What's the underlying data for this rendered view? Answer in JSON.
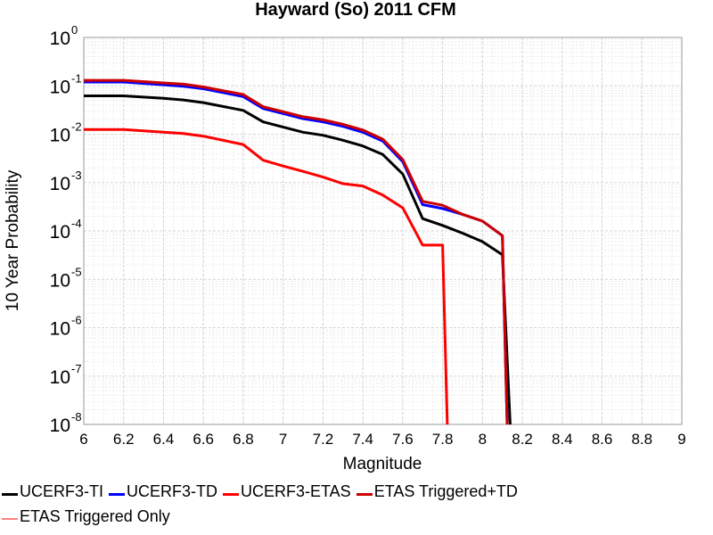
{
  "chart_data": {
    "type": "line",
    "title": "Hayward (So) 2011 CFM",
    "xlabel": "Magnitude",
    "ylabel": "10 Year Probability",
    "xlim": [
      6,
      9
    ],
    "ylim": [
      1e-08,
      1
    ],
    "y_scale": "log",
    "grid": true,
    "legend_placement": "bottom",
    "x_ticks": [
      "6",
      "6.2",
      "6.4",
      "6.6",
      "6.8",
      "7",
      "7.2",
      "7.4",
      "7.6",
      "7.8",
      "8",
      "8.2",
      "8.4",
      "8.6",
      "8.8",
      "9"
    ],
    "y_ticks": [
      {
        "base": "10",
        "exp": "0"
      },
      {
        "base": "10",
        "exp": "-1"
      },
      {
        "base": "10",
        "exp": "-2"
      },
      {
        "base": "10",
        "exp": "-3"
      },
      {
        "base": "10",
        "exp": "-4"
      },
      {
        "base": "10",
        "exp": "-5"
      },
      {
        "base": "10",
        "exp": "-6"
      },
      {
        "base": "10",
        "exp": "-7"
      },
      {
        "base": "10",
        "exp": "-8"
      }
    ],
    "series": [
      {
        "name": "UCERF3-TI",
        "color": "#000000",
        "width": 3,
        "x": [
          6.0,
          6.2,
          6.4,
          6.5,
          6.6,
          6.8,
          6.9,
          7.1,
          7.2,
          7.3,
          7.4,
          7.5,
          7.6,
          7.7,
          7.8,
          7.9,
          8.0,
          8.1,
          8.15
        ],
        "y": [
          0.062,
          0.062,
          0.055,
          0.051,
          0.045,
          0.031,
          0.018,
          0.011,
          0.0095,
          0.0075,
          0.0057,
          0.0038,
          0.0015,
          0.00018,
          0.00013,
          9e-05,
          6e-05,
          3.2e-05,
          1e-09
        ]
      },
      {
        "name": "UCERF3-TD",
        "color": "#0000ff",
        "width": 3,
        "x": [
          6.0,
          6.2,
          6.4,
          6.5,
          6.6,
          6.8,
          6.9,
          7.1,
          7.2,
          7.3,
          7.4,
          7.5,
          7.6,
          7.7,
          7.8,
          7.9,
          8.0,
          8.1,
          8.13
        ],
        "y": [
          0.12,
          0.12,
          0.105,
          0.098,
          0.087,
          0.06,
          0.034,
          0.021,
          0.018,
          0.0145,
          0.011,
          0.0072,
          0.0027,
          0.00035,
          0.00029,
          0.00022,
          0.00016,
          8e-05,
          1e-09
        ]
      },
      {
        "name": "UCERF3-ETAS",
        "color": "#ff0000",
        "width": 3,
        "x": [
          6.0,
          6.2,
          6.4,
          6.5,
          6.6,
          6.8,
          6.9,
          7.0,
          7.1,
          7.2,
          7.3,
          7.4,
          7.5,
          7.6,
          7.7,
          7.8,
          7.83
        ],
        "y": [
          0.0125,
          0.0125,
          0.011,
          0.0103,
          0.0091,
          0.0061,
          0.0029,
          0.0022,
          0.0017,
          0.0013,
          0.00095,
          0.00085,
          0.00055,
          0.0003,
          5.1e-05,
          5.1e-05,
          1e-09
        ]
      },
      {
        "name": "ETAS Triggered+TD",
        "color": "#cc0000",
        "width": 3,
        "x": [
          6.0,
          6.2,
          6.4,
          6.5,
          6.6,
          6.8,
          6.9,
          7.1,
          7.2,
          7.3,
          7.4,
          7.5,
          7.6,
          7.7,
          7.8,
          7.9,
          8.0,
          8.1,
          8.13
        ],
        "y": [
          0.13,
          0.13,
          0.115,
          0.108,
          0.095,
          0.066,
          0.037,
          0.023,
          0.0198,
          0.016,
          0.0122,
          0.0079,
          0.003,
          0.00041,
          0.00034,
          0.00022,
          0.00016,
          8e-05,
          1e-09
        ]
      },
      {
        "name": "ETAS Triggered Only",
        "color": "#ff8080",
        "width": 1.5,
        "x": [],
        "y": []
      }
    ]
  }
}
